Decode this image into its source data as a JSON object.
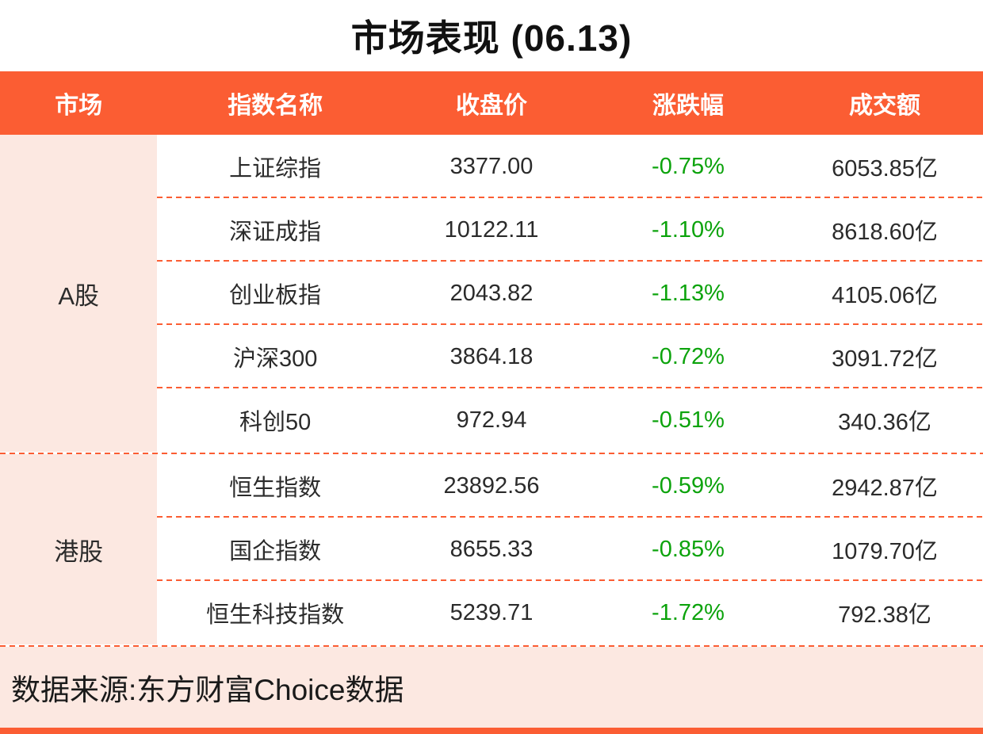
{
  "colors": {
    "accent": "#FB5D33",
    "pink": "#FCE8E1",
    "green": "#0CA30C",
    "text": "#2B2B2B"
  },
  "chart_data": {
    "type": "table",
    "title": "市场表现 (06.13)",
    "columns": [
      "市场",
      "指数名称",
      "收盘价",
      "涨跌幅",
      "成交额"
    ],
    "groups": [
      {
        "market": "A股",
        "rows": [
          {
            "name": "上证综指",
            "close": "3377.00",
            "change": "-0.75%",
            "turnover": "6053.85亿"
          },
          {
            "name": "深证成指",
            "close": "10122.11",
            "change": "-1.10%",
            "turnover": "8618.60亿"
          },
          {
            "name": "创业板指",
            "close": "2043.82",
            "change": "-1.13%",
            "turnover": "4105.06亿"
          },
          {
            "name": "沪深300",
            "close": "3864.18",
            "change": "-0.72%",
            "turnover": "3091.72亿"
          },
          {
            "name": "科创50",
            "close": "972.94",
            "change": "-0.51%",
            "turnover": "340.36亿"
          }
        ]
      },
      {
        "market": "港股",
        "rows": [
          {
            "name": "恒生指数",
            "close": "23892.56",
            "change": "-0.59%",
            "turnover": "2942.87亿"
          },
          {
            "name": "国企指数",
            "close": "8655.33",
            "change": "-0.85%",
            "turnover": "1079.70亿"
          },
          {
            "name": "恒生科技指数",
            "close": "5239.71",
            "change": "-1.72%",
            "turnover": "792.38亿"
          }
        ]
      }
    ]
  },
  "footer": {
    "source": "数据来源:东方财富Choice数据"
  }
}
